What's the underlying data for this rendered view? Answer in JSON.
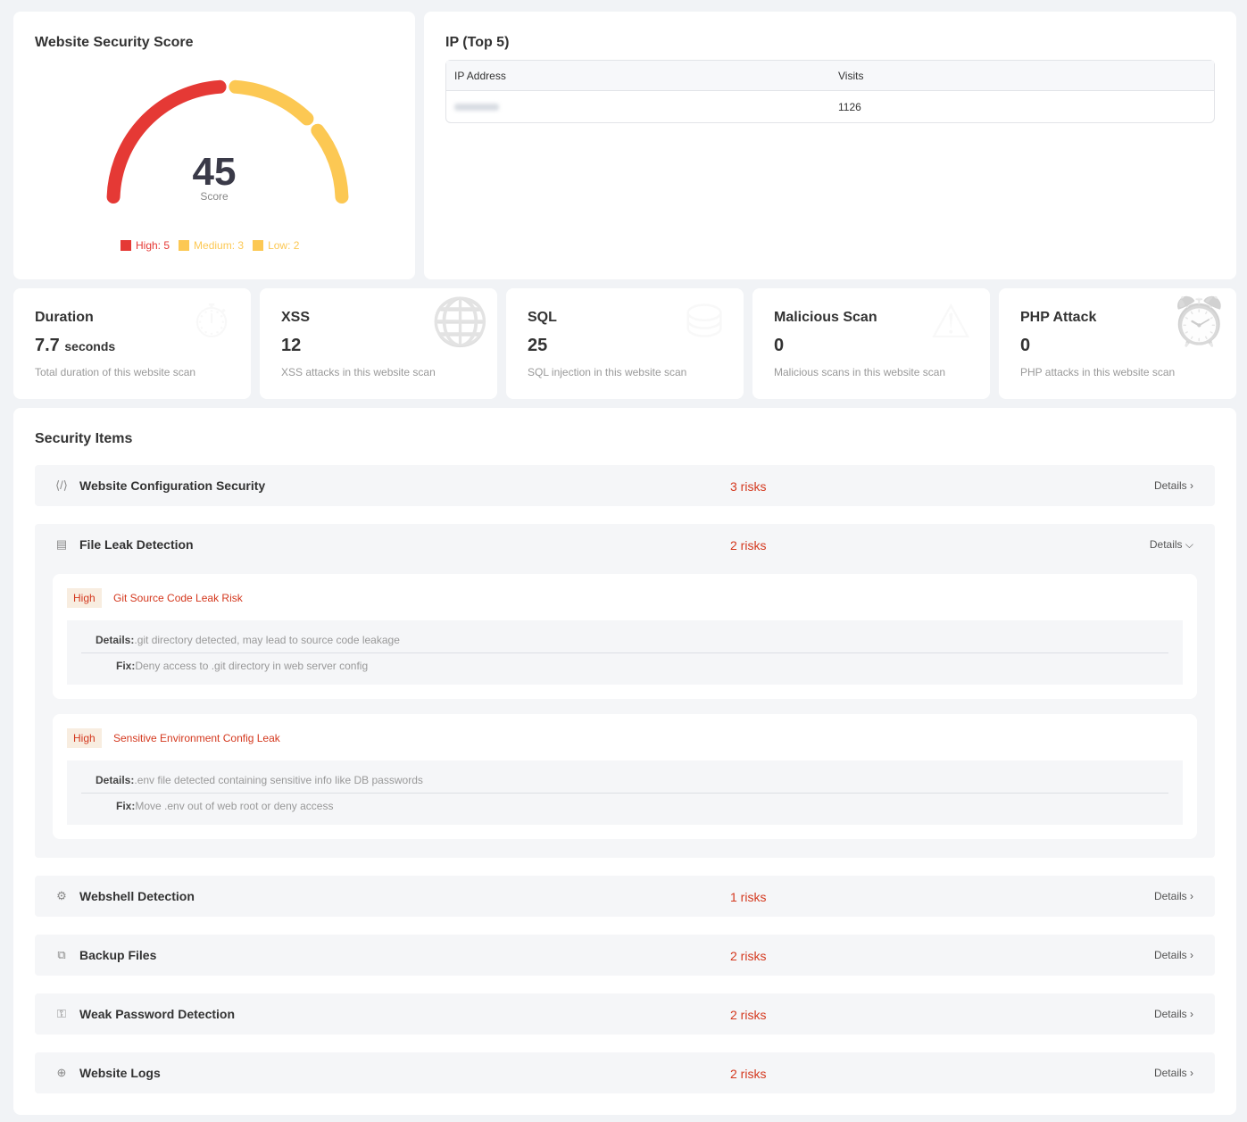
{
  "score": {
    "title": "Website Security Score",
    "value": "45",
    "label": "Score",
    "legend": [
      {
        "label": "High: 5",
        "color": "#e53935"
      },
      {
        "label": "Medium: 3",
        "color": "#fcc853"
      },
      {
        "label": "Low: 2",
        "color": "#fcc853"
      }
    ]
  },
  "ip": {
    "title": "IP (Top 5)",
    "headers": [
      "IP Address",
      "Visits"
    ],
    "rows": [
      {
        "visits": "1126"
      }
    ]
  },
  "stats": [
    {
      "title": "Duration",
      "value": "7.7",
      "unit": "seconds",
      "desc": "Total duration of this website scan",
      "icon": "stopwatch-icon"
    },
    {
      "title": "XSS",
      "value": "12",
      "desc": "XSS attacks in this website scan",
      "icon": "globe-icon"
    },
    {
      "title": "SQL",
      "value": "25",
      "desc": "SQL injection in this website scan",
      "icon": "database-sql-icon"
    },
    {
      "title": "Malicious Scan",
      "value": "0",
      "desc": "Malicious scans in this website scan",
      "icon": "warning-scan-icon"
    },
    {
      "title": "PHP Attack",
      "value": "0",
      "desc": "PHP attacks in this website scan",
      "icon": "alarm-icon"
    }
  ],
  "security": {
    "title": "Security Items",
    "details_label": "Details",
    "items": [
      {
        "name": "Website Configuration Security",
        "risks": "3 risks"
      },
      {
        "name": "File Leak Detection",
        "risks": "2 risks"
      },
      {
        "name": "Webshell Detection",
        "risks": "1 risks"
      },
      {
        "name": "Backup Files",
        "risks": "2 risks"
      },
      {
        "name": "Weak Password Detection",
        "risks": "2 risks"
      },
      {
        "name": "Website Logs",
        "risks": "2 risks"
      }
    ],
    "findings": [
      {
        "level": "High",
        "title": "Git Source Code Leak Risk",
        "details_label": "Details:",
        "details": ".git directory detected, may lead to source code leakage",
        "fix_label": "Fix:",
        "fix": "Deny access to .git directory in web server config"
      },
      {
        "level": "High",
        "title": "Sensitive Environment Config Leak",
        "details_label": "Details:",
        "details": ".env file detected containing sensitive info like DB passwords",
        "fix_label": "Fix:",
        "fix": "Move .env out of web root or deny access"
      }
    ]
  }
}
